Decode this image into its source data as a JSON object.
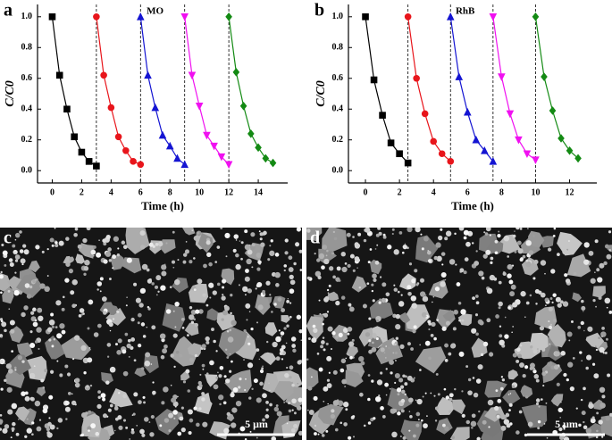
{
  "chart_data": [
    {
      "type": "line",
      "panel": "a",
      "annotation": "MO",
      "xlabel": "Time (h)",
      "ylabel": "C/C0",
      "xlim": [
        -1,
        16
      ],
      "xticks": [
        0,
        2,
        4,
        6,
        8,
        10,
        12,
        14
      ],
      "ylim": [
        -0.08,
        1.08
      ],
      "yticks": [
        {
          "value": 0,
          "label": "0.0"
        },
        0.2,
        0.4,
        0.6,
        0.8,
        {
          "value": 1,
          "label": "1.0"
        }
      ],
      "vlines": [
        3,
        6,
        9,
        12
      ],
      "series": [
        {
          "color": "#000000",
          "marker": "square",
          "x": [
            0,
            0.5,
            1,
            1.5,
            2,
            2.5,
            3
          ],
          "values": [
            1.0,
            0.62,
            0.4,
            0.22,
            0.12,
            0.06,
            0.03
          ]
        },
        {
          "color": "#e8151b",
          "marker": "circle",
          "x": [
            3,
            3.5,
            4,
            4.5,
            5,
            5.5,
            6
          ],
          "values": [
            1.0,
            0.62,
            0.41,
            0.22,
            0.13,
            0.06,
            0.04
          ]
        },
        {
          "color": "#1414d2",
          "marker": "triangle-up",
          "x": [
            6,
            6.5,
            7,
            7.5,
            8,
            8.5,
            9
          ],
          "values": [
            1.0,
            0.62,
            0.41,
            0.23,
            0.16,
            0.08,
            0.04
          ]
        },
        {
          "color": "#f010f0",
          "marker": "triangle-down",
          "x": [
            9,
            9.5,
            10,
            10.5,
            11,
            11.5,
            12
          ],
          "values": [
            1.0,
            0.62,
            0.42,
            0.23,
            0.16,
            0.09,
            0.04
          ]
        },
        {
          "color": "#138a13",
          "marker": "diamond",
          "x": [
            12,
            12.5,
            13,
            13.5,
            14,
            14.5,
            15
          ],
          "values": [
            1.0,
            0.64,
            0.42,
            0.24,
            0.15,
            0.08,
            0.05
          ]
        }
      ]
    },
    {
      "type": "line",
      "panel": "b",
      "annotation": "RhB",
      "xlabel": "Time (h)",
      "ylabel": "C/C0",
      "xlim": [
        -1,
        13.6
      ],
      "xticks": [
        0,
        2,
        4,
        6,
        8,
        10,
        12
      ],
      "ylim": [
        -0.08,
        1.08
      ],
      "yticks": [
        {
          "value": 0,
          "label": "0.0"
        },
        0.2,
        0.4,
        0.6,
        0.8,
        {
          "value": 1,
          "label": "1.0"
        }
      ],
      "vlines": [
        2.5,
        5,
        7.5,
        10
      ],
      "series": [
        {
          "color": "#000000",
          "marker": "square",
          "x": [
            0,
            0.5,
            1,
            1.5,
            2,
            2.5
          ],
          "values": [
            1.0,
            0.59,
            0.36,
            0.18,
            0.11,
            0.05
          ]
        },
        {
          "color": "#e8151b",
          "marker": "circle",
          "x": [
            2.5,
            3,
            3.5,
            4,
            4.5,
            5
          ],
          "values": [
            1.0,
            0.6,
            0.37,
            0.19,
            0.11,
            0.06
          ]
        },
        {
          "color": "#1414d2",
          "marker": "triangle-up",
          "x": [
            5,
            5.5,
            6,
            6.5,
            7,
            7.5
          ],
          "values": [
            1.0,
            0.61,
            0.38,
            0.2,
            0.13,
            0.06
          ]
        },
        {
          "color": "#f010f0",
          "marker": "triangle-down",
          "x": [
            7.5,
            8,
            8.5,
            9,
            9.5,
            10
          ],
          "values": [
            1.0,
            0.61,
            0.37,
            0.2,
            0.11,
            0.07
          ]
        },
        {
          "color": "#138a13",
          "marker": "diamond",
          "x": [
            10,
            10.5,
            11,
            11.5,
            12,
            12.5
          ],
          "values": [
            1.0,
            0.61,
            0.39,
            0.21,
            0.13,
            0.08
          ]
        }
      ]
    }
  ],
  "images": [
    {
      "panel": "c",
      "scale_bar": "5 μm"
    },
    {
      "panel": "d",
      "scale_bar": "5 μm"
    }
  ]
}
